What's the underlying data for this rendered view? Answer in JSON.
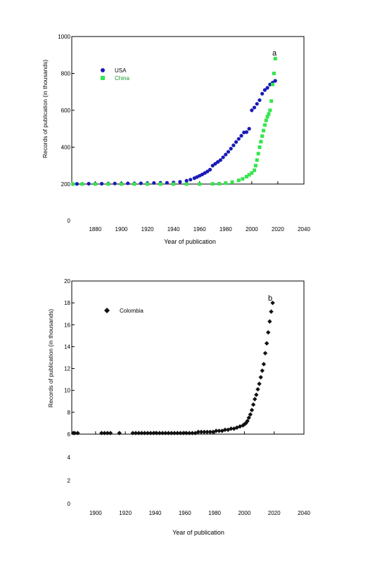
{
  "chart_data": [
    {
      "type": "scatter",
      "panel_label": "a",
      "xlabel": "Year of publication",
      "ylabel": "Records of publication (in thousands)",
      "xticks": [
        1880,
        1900,
        1920,
        1940,
        1960,
        1980,
        2000,
        2020,
        2040
      ],
      "yticks": [
        0,
        200,
        400,
        600,
        800,
        1000
      ],
      "xlim": [
        1862,
        2040
      ],
      "ylim": [
        0,
        1000
      ],
      "plot_ylim": [
        200,
        1000
      ],
      "legend_position": "top-left",
      "series": [
        {
          "name": "USA",
          "color": "#1a1ab8",
          "marker": "circle",
          "x": [
            1863,
            1866,
            1870,
            1875,
            1880,
            1885,
            1890,
            1895,
            1900,
            1905,
            1910,
            1915,
            1920,
            1925,
            1930,
            1935,
            1940,
            1945,
            1950,
            1953,
            1956,
            1958,
            1960,
            1962,
            1964,
            1966,
            1968,
            1970,
            1972,
            1974,
            1976,
            1978,
            1980,
            1982,
            1984,
            1986,
            1988,
            1990,
            1992,
            1994,
            1996,
            1998,
            2000,
            2002,
            2004,
            2006,
            2008,
            2010,
            2012,
            2014,
            2016,
            2018
          ],
          "y": [
            200,
            201,
            201,
            202,
            202,
            202,
            203,
            203,
            203,
            204,
            204,
            204,
            205,
            206,
            207,
            207,
            208,
            212,
            218,
            224,
            232,
            238,
            245,
            252,
            260,
            268,
            278,
            300,
            310,
            320,
            330,
            345,
            360,
            375,
            392,
            410,
            428,
            445,
            462,
            480,
            482,
            500,
            600,
            615,
            635,
            655,
            690,
            710,
            722,
            740,
            750,
            760
          ]
        },
        {
          "name": "China",
          "color": "#33e64d",
          "marker": "square",
          "x": [
            1863,
            1870,
            1880,
            1890,
            1900,
            1910,
            1920,
            1930,
            1940,
            1950,
            1960,
            1970,
            1975,
            1980,
            1985,
            1990,
            1993,
            1996,
            1998,
            2000,
            2002,
            2003,
            2004,
            2005,
            2006,
            2007,
            2008,
            2009,
            2010,
            2011,
            2012,
            2013,
            2014,
            2015,
            2016,
            2017,
            2018
          ],
          "y": [
            200,
            200,
            200,
            200,
            200,
            200,
            200,
            200,
            200,
            200,
            200,
            201,
            202,
            205,
            210,
            220,
            228,
            240,
            250,
            260,
            275,
            300,
            330,
            365,
            400,
            430,
            460,
            490,
            520,
            545,
            565,
            580,
            600,
            650,
            740,
            800,
            880
          ]
        }
      ]
    },
    {
      "type": "scatter",
      "panel_label": "b",
      "xlabel": "Year of publication",
      "ylabel": "Records of publication (in thousands)",
      "xticks": [
        1900,
        1920,
        1940,
        1960,
        1980,
        2000,
        2020,
        2040
      ],
      "yticks": [
        0,
        2,
        4,
        6,
        8,
        10,
        12,
        14,
        16,
        18,
        20
      ],
      "xlim": [
        1884,
        2040
      ],
      "ylim": [
        0,
        20
      ],
      "plot_ylim": [
        6,
        20
      ],
      "legend_position": "top-left",
      "series": [
        {
          "name": "Colombia",
          "color": "#111111",
          "marker": "diamond",
          "x": [
            1885,
            1886,
            1888,
            1904,
            1906,
            1908,
            1910,
            1916,
            1925,
            1927,
            1929,
            1931,
            1933,
            1935,
            1937,
            1939,
            1941,
            1943,
            1945,
            1947,
            1949,
            1951,
            1953,
            1955,
            1957,
            1959,
            1961,
            1963,
            1965,
            1967,
            1969,
            1971,
            1973,
            1975,
            1977,
            1979,
            1981,
            1983,
            1985,
            1987,
            1989,
            1991,
            1993,
            1995,
            1997,
            1999,
            2000,
            2001,
            2002,
            2003,
            2004,
            2005,
            2006,
            2007,
            2008,
            2009,
            2010,
            2011,
            2012,
            2013,
            2014,
            2015,
            2016,
            2017,
            2018,
            2019
          ],
          "y": [
            6.1,
            6.1,
            6.1,
            6.1,
            6.1,
            6.1,
            6.1,
            6.1,
            6.1,
            6.1,
            6.1,
            6.1,
            6.1,
            6.1,
            6.1,
            6.1,
            6.1,
            6.1,
            6.1,
            6.1,
            6.1,
            6.1,
            6.1,
            6.1,
            6.1,
            6.1,
            6.1,
            6.1,
            6.1,
            6.1,
            6.2,
            6.2,
            6.2,
            6.2,
            6.2,
            6.2,
            6.3,
            6.3,
            6.3,
            6.4,
            6.4,
            6.5,
            6.5,
            6.6,
            6.7,
            6.8,
            6.9,
            7.0,
            7.2,
            7.5,
            7.8,
            8.2,
            8.7,
            9.2,
            9.6,
            10.1,
            10.6,
            11.2,
            11.8,
            12.4,
            13.4,
            14.3,
            15.3,
            16.3,
            17.2,
            18.0
          ]
        }
      ]
    }
  ]
}
